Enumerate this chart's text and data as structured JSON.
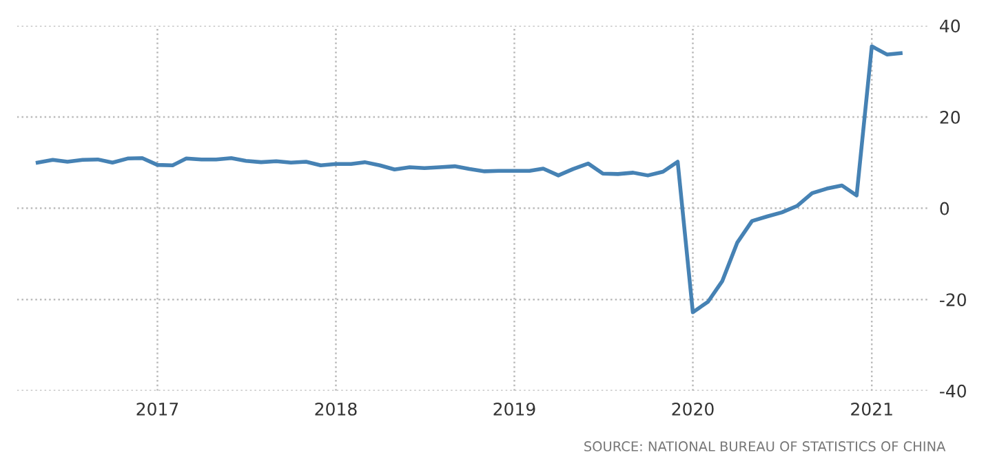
{
  "chart_data": {
    "type": "line",
    "x": [
      "2016-05",
      "2016-06",
      "2016-07",
      "2016-08",
      "2016-09",
      "2016-10",
      "2016-11",
      "2016-12",
      "2017-01",
      "2017-02",
      "2017-03",
      "2017-04",
      "2017-05",
      "2017-06",
      "2017-07",
      "2017-08",
      "2017-09",
      "2017-10",
      "2017-11",
      "2017-12",
      "2018-01",
      "2018-02",
      "2018-03",
      "2018-04",
      "2018-05",
      "2018-06",
      "2018-07",
      "2018-08",
      "2018-09",
      "2018-10",
      "2018-11",
      "2018-12",
      "2019-01",
      "2019-02",
      "2019-03",
      "2019-04",
      "2019-05",
      "2019-06",
      "2019-07",
      "2019-08",
      "2019-09",
      "2019-10",
      "2019-11",
      "2019-12",
      "2020-01",
      "2020-02",
      "2020-03",
      "2020-04",
      "2020-05",
      "2020-06",
      "2020-07",
      "2020-08",
      "2020-09",
      "2020-10",
      "2020-11",
      "2020-12",
      "2021-01",
      "2021-02",
      "2021-03"
    ],
    "series": [
      {
        "color": "#4682b4",
        "values": [
          10.0,
          10.6,
          10.2,
          10.6,
          10.7,
          10.0,
          10.9,
          11.0,
          9.5,
          9.4,
          10.9,
          10.7,
          10.7,
          11.0,
          10.4,
          10.1,
          10.3,
          10.0,
          10.2,
          9.4,
          9.7,
          9.7,
          10.1,
          9.4,
          8.5,
          9.0,
          8.8,
          9.0,
          9.2,
          8.6,
          8.1,
          8.2,
          8.2,
          8.2,
          8.7,
          7.2,
          8.6,
          9.8,
          7.6,
          7.5,
          7.8,
          7.2,
          8.0,
          10.2,
          -22.8,
          -20.5,
          -16,
          -7.5,
          -2.8,
          -1.8,
          -0.9,
          0.5,
          3.3,
          4.3,
          5.0,
          2.8,
          35.5,
          33.7,
          34.0
        ]
      }
    ],
    "xlim": [
      "2016-03-20",
      "2021-04-25"
    ],
    "xticks": [
      {
        "value": "2017-01-01",
        "label": "2017"
      },
      {
        "value": "2018-01-01",
        "label": "2018"
      },
      {
        "value": "2019-01-01",
        "label": "2019"
      },
      {
        "value": "2020-01-01",
        "label": "2020"
      },
      {
        "value": "2021-01-01",
        "label": "2021"
      }
    ],
    "ylim": [
      -40,
      40
    ],
    "yticks": [
      -40,
      -20,
      0,
      20,
      40
    ],
    "grid": true,
    "line_style": "solid",
    "marker": "none",
    "annotations": [
      "SOURCE: NATIONAL BUREAU OF STATISTICS OF CHINA"
    ]
  }
}
